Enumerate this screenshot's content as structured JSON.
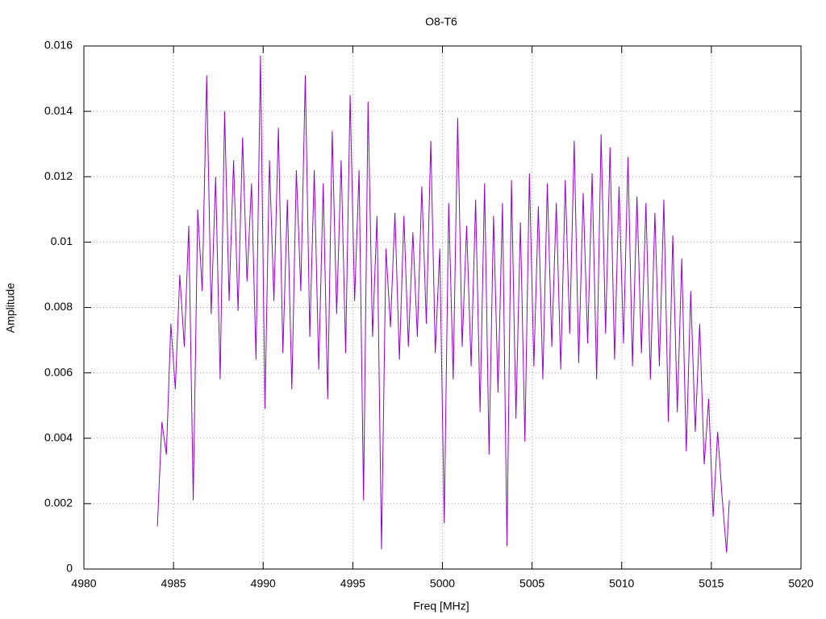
{
  "chart_data": {
    "type": "line",
    "title": "O8-T6",
    "x_label": "Freq [MHz]",
    "y_label": "Amplitude",
    "xlim": [
      4980,
      5020
    ],
    "xticks": [
      4980,
      4985,
      4990,
      4995,
      5000,
      5005,
      5010,
      5015,
      5020
    ],
    "ylim": [
      0,
      0.016
    ],
    "yticks": [
      0,
      0.002,
      0.004,
      0.006,
      0.008,
      0.01,
      0.012,
      0.014,
      0.016
    ],
    "grid": true,
    "x": [
      4984.1,
      4984.35,
      4984.6,
      4984.85,
      4985.1,
      4985.35,
      4985.6,
      4985.85,
      4986.1,
      4986.35,
      4986.6,
      4986.85,
      4987.1,
      4987.35,
      4987.6,
      4987.85,
      4988.1,
      4988.35,
      4988.6,
      4988.85,
      4989.1,
      4989.35,
      4989.6,
      4989.85,
      4990.1,
      4990.35,
      4990.6,
      4990.85,
      4991.1,
      4991.35,
      4991.6,
      4991.85,
      4992.1,
      4992.35,
      4992.6,
      4992.85,
      4993.1,
      4993.35,
      4993.6,
      4993.85,
      4994.1,
      4994.35,
      4994.6,
      4994.85,
      4995.1,
      4995.35,
      4995.6,
      4995.85,
      4996.1,
      4996.35,
      4996.6,
      4996.85,
      4997.1,
      4997.35,
      4997.6,
      4997.85,
      4998.1,
      4998.35,
      4998.6,
      4998.85,
      4999.1,
      4999.35,
      4999.6,
      4999.85,
      5000.1,
      5000.35,
      5000.6,
      5000.85,
      5001.1,
      5001.35,
      5001.6,
      5001.85,
      5002.1,
      5002.35,
      5002.6,
      5002.85,
      5003.1,
      5003.35,
      5003.6,
      5003.85,
      5004.1,
      5004.35,
      5004.6,
      5004.85,
      5005.1,
      5005.35,
      5005.6,
      5005.85,
      5006.1,
      5006.35,
      5006.6,
      5006.85,
      5007.1,
      5007.35,
      5007.6,
      5007.85,
      5008.1,
      5008.35,
      5008.6,
      5008.85,
      5009.1,
      5009.35,
      5009.6,
      5009.85,
      5010.1,
      5010.35,
      5010.6,
      5010.85,
      5011.1,
      5011.35,
      5011.6,
      5011.85,
      5012.1,
      5012.35,
      5012.6,
      5012.85,
      5013.1,
      5013.35,
      5013.6,
      5013.85,
      5014.1,
      5014.35,
      5014.6,
      5014.85,
      5015.1,
      5015.35,
      5015.6,
      5015.85,
      5016.0
    ],
    "series": [
      {
        "color": "#9400d3",
        "values": [
          0.0013,
          0.0045,
          0.0035,
          0.0075,
          0.0055,
          0.009,
          0.0068,
          0.0105,
          0.0021,
          0.011,
          0.0085,
          0.0151,
          0.0078,
          0.012,
          0.0058,
          0.014,
          0.0082,
          0.0125,
          0.0079,
          0.0132,
          0.0088,
          0.0118,
          0.0064,
          0.0157,
          0.0049,
          0.0125,
          0.0082,
          0.0135,
          0.0066,
          0.0113,
          0.0055,
          0.0122,
          0.0085,
          0.0151,
          0.0071,
          0.0122,
          0.0061,
          0.0118,
          0.0052,
          0.0134,
          0.0078,
          0.0125,
          0.0066,
          0.0145,
          0.0082,
          0.0122,
          0.0021,
          0.0143,
          0.0071,
          0.0108,
          0.0006,
          0.0098,
          0.0074,
          0.0109,
          0.0064,
          0.0108,
          0.0068,
          0.0103,
          0.0071,
          0.0117,
          0.0075,
          0.0131,
          0.0066,
          0.0098,
          0.0014,
          0.0112,
          0.0058,
          0.0138,
          0.0068,
          0.0105,
          0.0062,
          0.0113,
          0.0048,
          0.0118,
          0.0035,
          0.0108,
          0.0054,
          0.0112,
          0.0007,
          0.0119,
          0.0046,
          0.0106,
          0.0039,
          0.0121,
          0.0062,
          0.0111,
          0.0058,
          0.0118,
          0.0068,
          0.0112,
          0.0061,
          0.0119,
          0.0072,
          0.0131,
          0.0063,
          0.0115,
          0.0069,
          0.0121,
          0.0058,
          0.0133,
          0.0072,
          0.0129,
          0.0064,
          0.0117,
          0.0069,
          0.0126,
          0.0062,
          0.0114,
          0.0066,
          0.0112,
          0.0058,
          0.0109,
          0.0062,
          0.0113,
          0.0045,
          0.0102,
          0.0048,
          0.0095,
          0.0036,
          0.0085,
          0.0042,
          0.0075,
          0.0032,
          0.0052,
          0.0016,
          0.0042,
          0.0022,
          0.0005,
          0.0021
        ]
      }
    ]
  }
}
